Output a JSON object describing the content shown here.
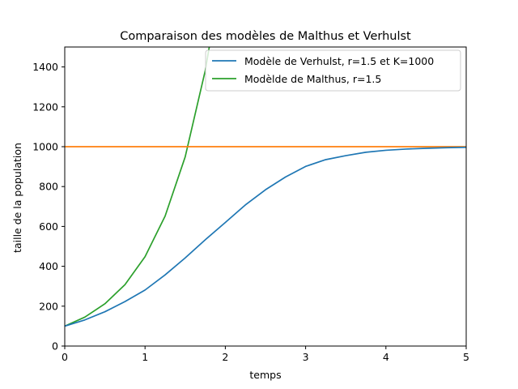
{
  "chart_data": {
    "type": "line",
    "title": "Comparaison des modèles de Malthus et Verhulst",
    "xlabel": "temps",
    "ylabel": "taille de la population",
    "xlim": [
      0,
      5
    ],
    "ylim": [
      0,
      1500
    ],
    "xticks": [
      0,
      1,
      2,
      3,
      4,
      5
    ],
    "yticks": [
      0,
      200,
      400,
      600,
      800,
      1000,
      1200,
      1400
    ],
    "grid": false,
    "legend_position": "top-right",
    "series": [
      {
        "name": "Modèle de Verhulst, r=1.5 et K=1000",
        "color": "#1f77b4",
        "x": [
          0,
          0.25,
          0.5,
          0.75,
          1,
          1.25,
          1.5,
          1.75,
          2,
          2.25,
          2.5,
          2.75,
          3,
          3.25,
          3.5,
          3.75,
          4,
          4.25,
          4.5,
          4.75,
          5
        ],
        "y": [
          100,
          131,
          172,
          223,
          281,
          357,
          442,
          533,
          620,
          708,
          784,
          848,
          901,
          935,
          955,
          972,
          982,
          988,
          992,
          995,
          997
        ]
      },
      {
        "name": "Modèlde de Malthus, r=1.5",
        "color": "#2ca02c",
        "x": [
          0,
          0.25,
          0.5,
          0.75,
          1,
          1.25,
          1.5,
          1.75,
          1.8
        ],
        "y": [
          100,
          145,
          212,
          308,
          448,
          652,
          949,
          1382,
          1500
        ]
      },
      {
        "name": "",
        "color": "#ff7f0e",
        "x": [
          0,
          5
        ],
        "y": [
          1000,
          1000
        ]
      }
    ]
  }
}
